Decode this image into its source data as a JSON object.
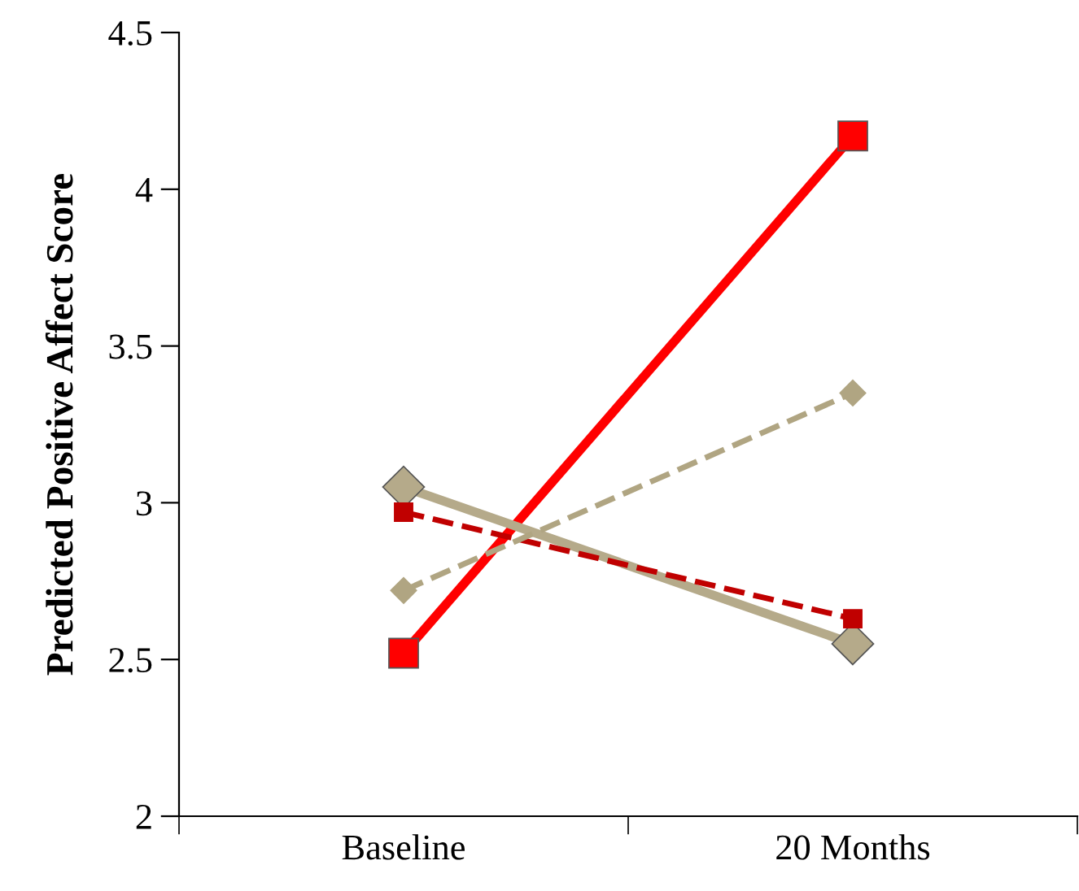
{
  "chart_data": {
    "type": "line",
    "ylabel": "Predicted Positive Affect Score",
    "categories": [
      "Baseline",
      "20 Months"
    ],
    "ylim": [
      2,
      4.5
    ],
    "yticks": [
      2,
      2.5,
      3,
      3.5,
      4,
      4.5
    ],
    "grid": false,
    "legend": false,
    "series": [
      {
        "color": "#ff0000",
        "values": [
          2.52,
          4.17
        ],
        "marker": "square",
        "line_style": "solid"
      },
      {
        "color": "#b5aa8a",
        "values": [
          3.05,
          2.55
        ],
        "marker": "diamond",
        "line_style": "solid"
      },
      {
        "color": "#c00000",
        "values": [
          2.97,
          2.63
        ],
        "marker": "square",
        "line_style": "dashed"
      },
      {
        "color": "#b0a582",
        "values": [
          2.72,
          3.35
        ],
        "marker": "diamond",
        "line_style": "dashed"
      }
    ]
  }
}
